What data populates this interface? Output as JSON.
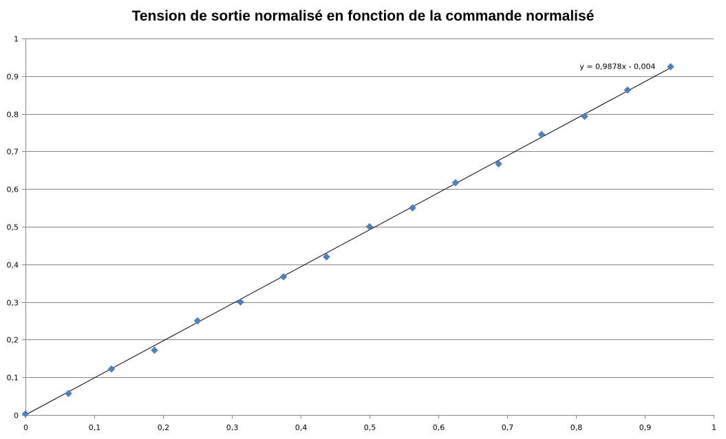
{
  "chart_data": {
    "type": "scatter",
    "title": "Tension de sortie normalisé en fonction de la commande normalisé",
    "xlabel": "",
    "ylabel": "",
    "xlim": [
      0,
      1
    ],
    "ylim": [
      0,
      1
    ],
    "x_ticks": [
      "0",
      "0,1",
      "0,2",
      "0,3",
      "0,4",
      "0,5",
      "0,6",
      "0,7",
      "0,8",
      "0,9",
      "1"
    ],
    "y_ticks": [
      "0",
      "0,1",
      "0,2",
      "0,3",
      "0,4",
      "0,5",
      "0,6",
      "0,7",
      "0,8",
      "0,9",
      "1"
    ],
    "grid": "horizontal",
    "legend": "none",
    "series": [
      {
        "color": "#4f81bd",
        "marker": "diamond",
        "x": [
          0,
          0.0625,
          0.125,
          0.1875,
          0.25,
          0.3125,
          0.375,
          0.4375,
          0.5,
          0.5625,
          0.625,
          0.6875,
          0.75,
          0.8125,
          0.875,
          0.9375
        ],
        "y": [
          0.003,
          0.057,
          0.122,
          0.172,
          0.25,
          0.3,
          0.367,
          0.42,
          0.5,
          0.55,
          0.617,
          0.667,
          0.745,
          0.793,
          0.863,
          0.925
        ]
      }
    ],
    "trendline": {
      "type": "linear",
      "slope": 0.9878,
      "intercept": -0.004,
      "x_range": [
        0,
        0.9375
      ],
      "label": "y = 0,9878x - 0,004",
      "color": "#000000"
    }
  }
}
